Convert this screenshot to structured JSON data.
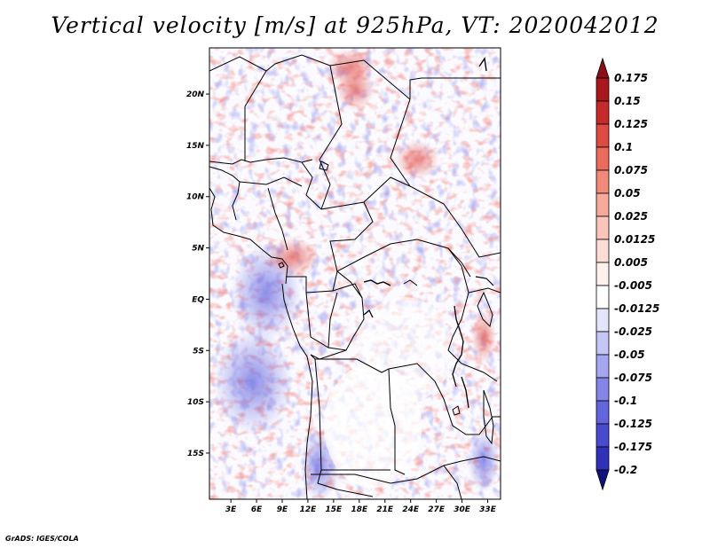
{
  "title": "Vertical velocity [m/s] at 925hPa, VT: 2020042012",
  "footer": "GrADS: IGES/COLA",
  "map": {
    "lat_range": [
      -19.5,
      24.5
    ],
    "lon_range": [
      0.5,
      34.5
    ],
    "lat_ticks": [
      {
        "value": 20,
        "label": "20N"
      },
      {
        "value": 15,
        "label": "15N"
      },
      {
        "value": 10,
        "label": "10N"
      },
      {
        "value": 5,
        "label": "5N"
      },
      {
        "value": 0,
        "label": "EQ"
      },
      {
        "value": -5,
        "label": "5S"
      },
      {
        "value": -10,
        "label": "10S"
      },
      {
        "value": -15,
        "label": "15S"
      }
    ],
    "lon_ticks": [
      {
        "value": 3,
        "label": "3E"
      },
      {
        "value": 6,
        "label": "6E"
      },
      {
        "value": 9,
        "label": "9E"
      },
      {
        "value": 12,
        "label": "12E"
      },
      {
        "value": 15,
        "label": "15E"
      },
      {
        "value": 18,
        "label": "18E"
      },
      {
        "value": 21,
        "label": "21E"
      },
      {
        "value": 24,
        "label": "24E"
      },
      {
        "value": 27,
        "label": "27E"
      },
      {
        "value": 30,
        "label": "30E"
      },
      {
        "value": 33,
        "label": "33E"
      }
    ]
  },
  "colorbar": {
    "units": "m/s",
    "levels": [
      {
        "label": "0.175",
        "color": "#a8181e"
      },
      {
        "label": "0.15",
        "color": "#c62a2a"
      },
      {
        "label": "0.125",
        "color": "#dd4b42"
      },
      {
        "label": "0.1",
        "color": "#ea6a5c"
      },
      {
        "label": "0.075",
        "color": "#f08a7a"
      },
      {
        "label": "0.05",
        "color": "#f6aa9c"
      },
      {
        "label": "0.025",
        "color": "#fac6bc"
      },
      {
        "label": "0.0125",
        "color": "#fddcd6"
      },
      {
        "label": "0.005",
        "color": "#fff0ee"
      },
      {
        "label": "-0.005",
        "color": "#ffffff"
      },
      {
        "label": "-0.0125",
        "color": "#e4e4fb"
      },
      {
        "label": "-0.025",
        "color": "#c6c6f6"
      },
      {
        "label": "-0.05",
        "color": "#a6a6f0"
      },
      {
        "label": "-0.075",
        "color": "#8585e8"
      },
      {
        "label": "-0.1",
        "color": "#6464dc"
      },
      {
        "label": "-0.125",
        "color": "#4a4ace"
      },
      {
        "label": "-0.175",
        "color": "#3030b8"
      },
      {
        "label": "-0.2",
        "color": "#1e1e9c"
      }
    ],
    "top_arrow_color": "#8a0f16",
    "bottom_arrow_color": "#12127e"
  }
}
